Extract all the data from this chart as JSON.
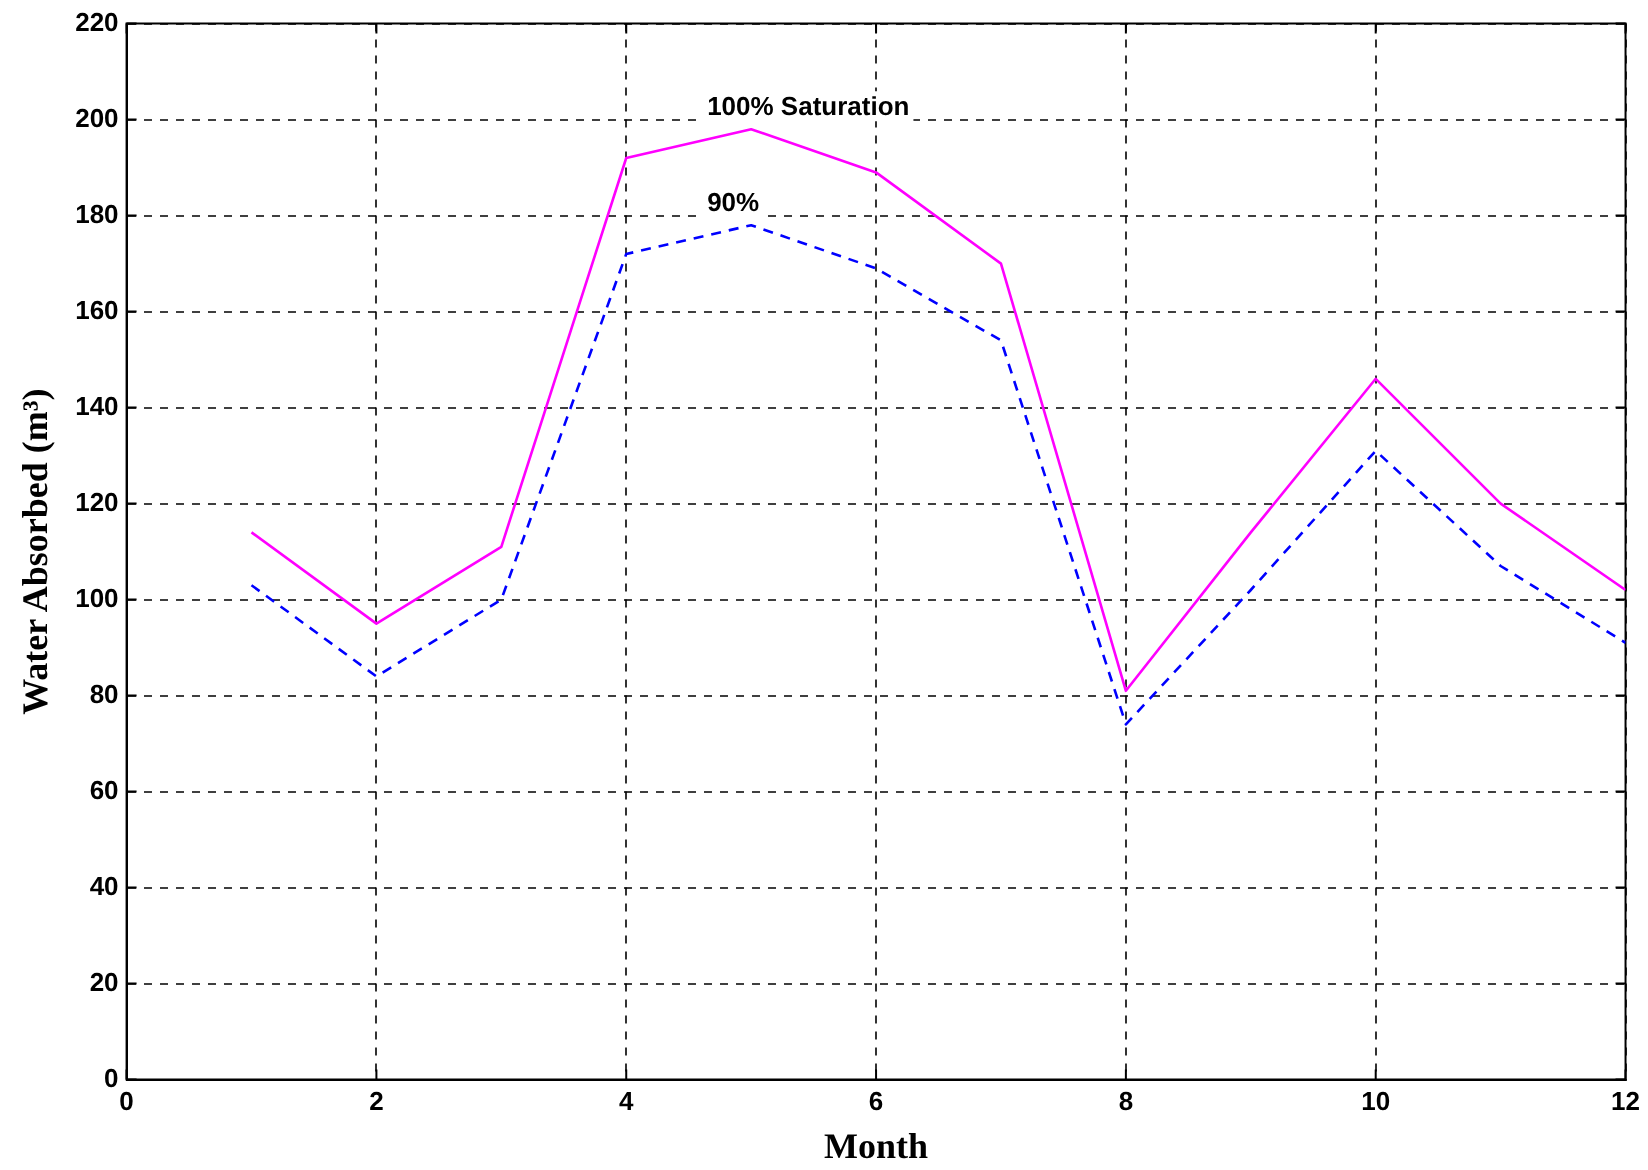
{
  "chart_data": {
    "type": "line",
    "xlabel": "Month",
    "ylabel": "Water Absorbed (m³)",
    "x": [
      1,
      2,
      3,
      4,
      5,
      6,
      7,
      8,
      9,
      10,
      11,
      12
    ],
    "series": [
      {
        "name": "100% Saturation",
        "color": "#ff00ff",
        "line_style": "solid",
        "values": [
          114,
          95,
          111,
          192,
          198,
          189,
          170,
          81,
          114,
          146,
          120,
          102
        ]
      },
      {
        "name": "90%",
        "color": "#0000ff",
        "line_style": "dashed",
        "values": [
          103,
          84,
          100,
          172,
          178,
          169,
          154,
          74,
          102,
          131,
          107,
          91
        ]
      }
    ],
    "xlim": [
      0,
      12
    ],
    "xticks": [
      0,
      2,
      4,
      6,
      8,
      10,
      12
    ],
    "ylim": [
      0,
      220
    ],
    "yticks": [
      0,
      20,
      40,
      60,
      80,
      100,
      120,
      140,
      160,
      180,
      200,
      220
    ],
    "grid": true,
    "legend": false,
    "marker": "none"
  }
}
